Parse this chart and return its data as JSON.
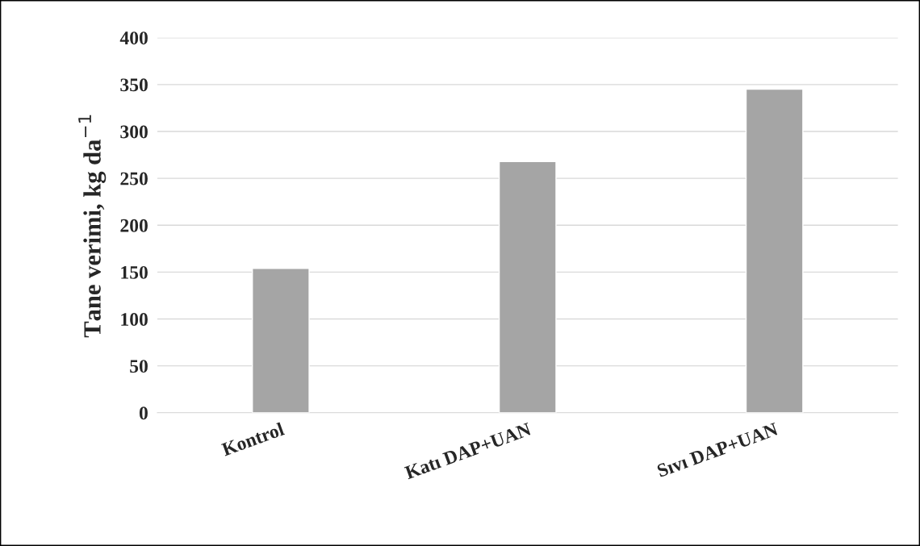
{
  "chart_data": {
    "type": "bar",
    "ylabel": "Tane verimi, kg da$^{−1}$",
    "categories": [
      "Kontrol",
      "Katı DAP+UAN",
      "Sıvı DAP+UAN"
    ],
    "values": [
      154,
      268,
      345
    ],
    "color": "#a5a5a5",
    "ylim": [
      0,
      400
    ],
    "yticks": [
      0,
      50,
      100,
      150,
      200,
      250,
      300,
      350,
      400
    ],
    "grid": "y",
    "legend": false
  }
}
